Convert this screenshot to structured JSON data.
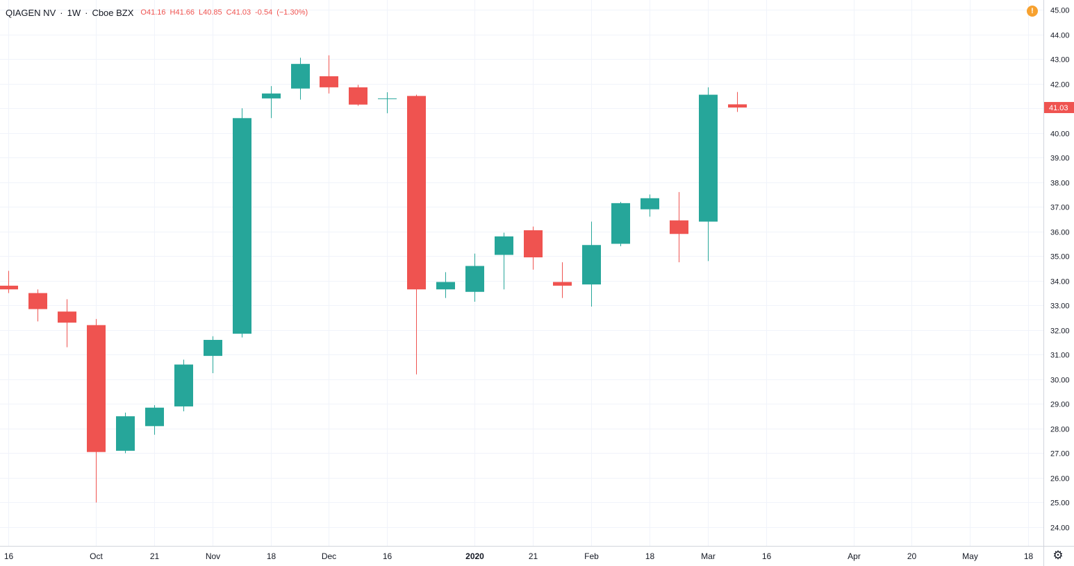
{
  "legend": {
    "symbol": "QIAGEN NV",
    "interval": "1W",
    "exchange": "Cboe BZX",
    "o_label": "O",
    "o_value": "41.16",
    "h_label": "H",
    "h_value": "41.66",
    "l_label": "L",
    "l_value": "40.85",
    "c_label": "C",
    "c_value": "41.03",
    "change": "-0.54",
    "change_pct": "(−1.30%)"
  },
  "alert_icon": "exclamation-icon",
  "alert_symbol": "!",
  "settings_icon": "gear-icon",
  "settings_symbol": "⚙",
  "colors": {
    "up": "#26a69a",
    "down": "#ef5350",
    "grid": "#f0f3fa",
    "text": "#131722",
    "last_price_bg": "#ef5350",
    "alert": "#f7a12f"
  },
  "chart_data": {
    "type": "candlestick",
    "ylim": [
      23.5,
      45.2
    ],
    "y_ticks": [
      "24.00",
      "25.00",
      "26.00",
      "27.00",
      "28.00",
      "29.00",
      "30.00",
      "31.00",
      "32.00",
      "33.00",
      "34.00",
      "35.00",
      "36.00",
      "37.00",
      "38.00",
      "39.00",
      "40.00",
      "41.00",
      "42.00",
      "43.00",
      "44.00",
      "45.00"
    ],
    "last_price": "41.03",
    "x_ticks": [
      {
        "label": "16",
        "index": 0,
        "bold": false
      },
      {
        "label": "Oct",
        "index": 3,
        "bold": false
      },
      {
        "label": "21",
        "index": 5,
        "bold": false
      },
      {
        "label": "Nov",
        "index": 7,
        "bold": false
      },
      {
        "label": "18",
        "index": 9,
        "bold": false
      },
      {
        "label": "Dec",
        "index": 11,
        "bold": false
      },
      {
        "label": "16",
        "index": 13,
        "bold": false
      },
      {
        "label": "2020",
        "index": 16,
        "bold": true
      },
      {
        "label": "21",
        "index": 18,
        "bold": false
      },
      {
        "label": "Feb",
        "index": 20,
        "bold": false
      },
      {
        "label": "18",
        "index": 22,
        "bold": false
      },
      {
        "label": "Mar",
        "index": 24,
        "bold": false
      },
      {
        "label": "16",
        "index": 26,
        "bold": false
      },
      {
        "label": "Apr",
        "index": 29,
        "bold": false
      },
      {
        "label": "20",
        "index": 31,
        "bold": false
      },
      {
        "label": "May",
        "index": 33,
        "bold": false
      },
      {
        "label": "18",
        "index": 35,
        "bold": false
      }
    ],
    "candles": [
      {
        "o": 33.8,
        "h": 34.4,
        "l": 33.5,
        "c": 33.65
      },
      {
        "o": 33.5,
        "h": 33.65,
        "l": 32.35,
        "c": 32.85
      },
      {
        "o": 32.75,
        "h": 33.25,
        "l": 31.3,
        "c": 32.3
      },
      {
        "o": 32.2,
        "h": 32.45,
        "l": 25.0,
        "c": 27.05
      },
      {
        "o": 27.1,
        "h": 28.65,
        "l": 27.0,
        "c": 28.5
      },
      {
        "o": 28.1,
        "h": 28.95,
        "l": 27.75,
        "c": 28.85
      },
      {
        "o": 28.9,
        "h": 30.8,
        "l": 28.7,
        "c": 30.6
      },
      {
        "o": 30.95,
        "h": 31.75,
        "l": 30.25,
        "c": 31.6
      },
      {
        "o": 31.85,
        "h": 41.0,
        "l": 31.7,
        "c": 40.6
      },
      {
        "o": 41.4,
        "h": 41.9,
        "l": 40.6,
        "c": 41.6
      },
      {
        "o": 41.8,
        "h": 43.05,
        "l": 41.35,
        "c": 42.8
      },
      {
        "o": 42.3,
        "h": 43.15,
        "l": 41.6,
        "c": 41.85
      },
      {
        "o": 41.85,
        "h": 41.95,
        "l": 41.1,
        "c": 41.15
      },
      {
        "o": 41.4,
        "h": 41.65,
        "l": 40.8,
        "c": 41.4
      },
      {
        "o": 41.5,
        "h": 41.55,
        "l": 30.2,
        "c": 33.65
      },
      {
        "o": 33.65,
        "h": 34.35,
        "l": 33.3,
        "c": 33.95
      },
      {
        "o": 33.55,
        "h": 35.1,
        "l": 33.15,
        "c": 34.6
      },
      {
        "o": 35.05,
        "h": 35.95,
        "l": 33.65,
        "c": 35.8
      },
      {
        "o": 36.05,
        "h": 36.2,
        "l": 34.45,
        "c": 34.95
      },
      {
        "o": 33.95,
        "h": 34.75,
        "l": 33.3,
        "c": 33.8
      },
      {
        "o": 33.85,
        "h": 36.4,
        "l": 32.95,
        "c": 35.45
      },
      {
        "o": 35.5,
        "h": 37.2,
        "l": 35.4,
        "c": 37.15
      },
      {
        "o": 36.9,
        "h": 37.5,
        "l": 36.6,
        "c": 37.35
      },
      {
        "o": 36.45,
        "h": 37.6,
        "l": 34.75,
        "c": 35.9
      },
      {
        "o": 36.4,
        "h": 41.85,
        "l": 34.8,
        "c": 41.55
      },
      {
        "o": 41.16,
        "h": 41.66,
        "l": 40.85,
        "c": 41.03
      }
    ]
  }
}
